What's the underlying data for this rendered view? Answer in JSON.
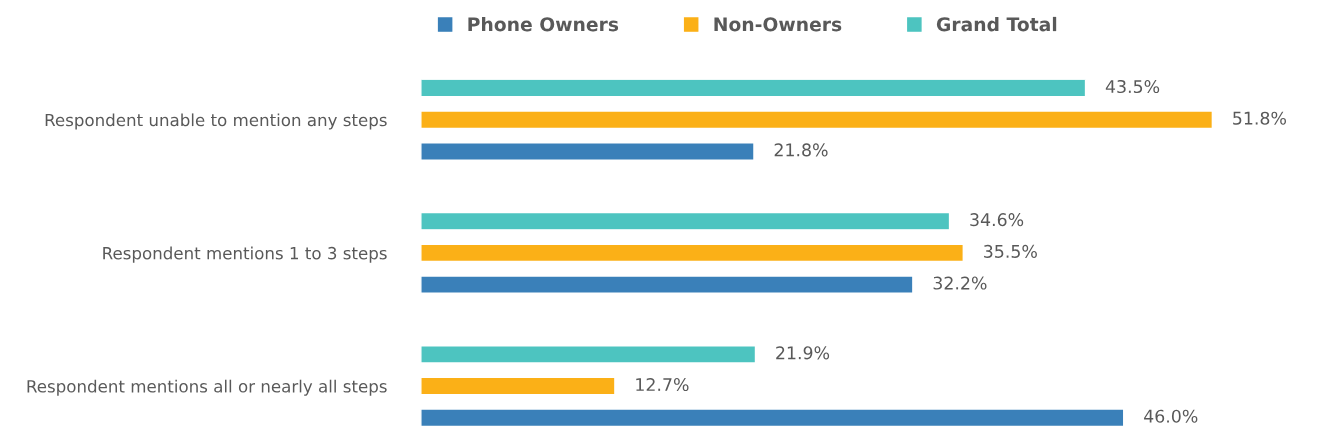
{
  "chart_data": {
    "type": "bar",
    "orientation": "horizontal",
    "legend": "top",
    "categories": [
      "Respondent unable to mention any steps",
      "Respondent mentions 1 to 3 steps",
      "Respondent mentions all or nearly all steps"
    ],
    "series": [
      {
        "name": "Phone Owners",
        "color": "#3a80b9",
        "values": [
          21.8,
          32.2,
          46.0
        ],
        "value_labels": [
          "21.8%",
          "32.2%",
          "46.0%"
        ]
      },
      {
        "name": "Non-Owners",
        "color": "#fbb017",
        "values": [
          51.8,
          35.5,
          12.7
        ],
        "value_labels": [
          "51.8%",
          "35.5%",
          "12.7%"
        ]
      },
      {
        "name": "Grand Total",
        "color": "#4dc4c0",
        "values": [
          43.5,
          34.6,
          21.9
        ],
        "value_labels": [
          "43.5%",
          "34.6%",
          "21.9%"
        ]
      }
    ]
  }
}
